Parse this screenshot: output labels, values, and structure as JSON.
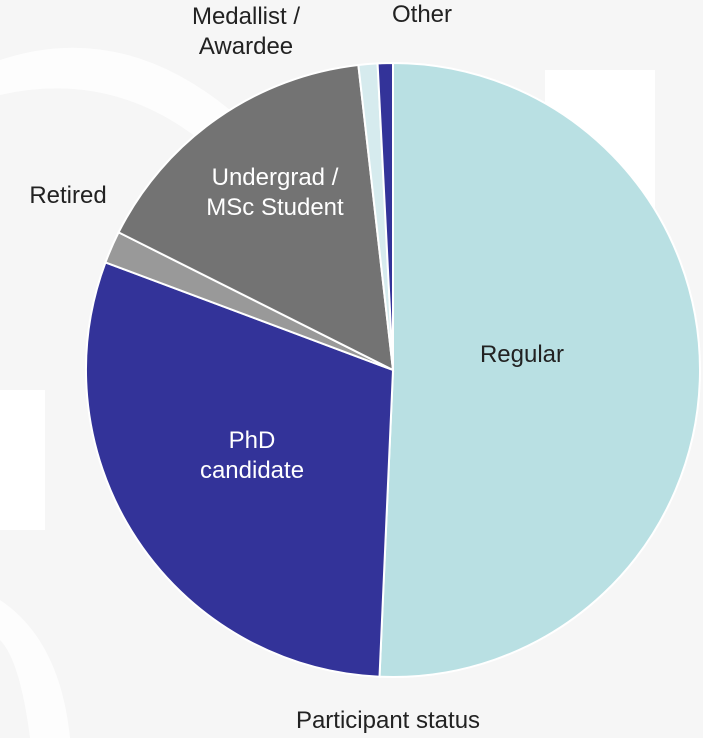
{
  "chart_data": {
    "type": "pie",
    "title": "Participant status",
    "categories": [
      "Regular",
      "PhD\ncandidate",
      "Retired",
      "Undergrad /\nMSc Student",
      "Medallist /\nAwardee",
      "Other"
    ],
    "values": [
      50.7,
      30,
      1.7,
      15.8,
      1,
      0.8
    ],
    "colors": [
      "#b9e0e3",
      "#333399",
      "#999999",
      "#737373",
      "#d6ebee",
      "#333399"
    ],
    "start_angle": 0,
    "direction": "clockwise"
  }
}
